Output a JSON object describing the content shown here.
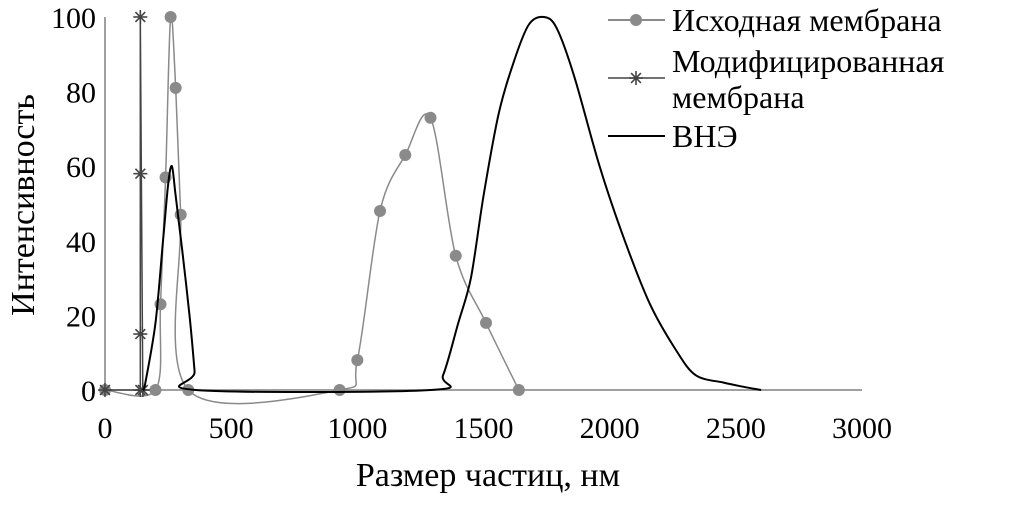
{
  "chart_data": {
    "type": "line",
    "xlabel": "Размер частиц, нм",
    "ylabel": "Интенсивность",
    "xlim": [
      0,
      3000
    ],
    "ylim": [
      0,
      100
    ],
    "xticks": [
      "0",
      "500",
      "1000",
      "1500",
      "2000",
      "2500",
      "3000"
    ],
    "yticks": [
      "0",
      "20",
      "40",
      "60",
      "80",
      "100"
    ],
    "grid": false,
    "legend_position": "top-right",
    "series": [
      {
        "name": "Исходная мембрана",
        "color": "#8a8a8a",
        "marker": "circle",
        "points": [
          [
            0,
            0
          ],
          [
            200,
            0
          ],
          [
            220,
            23
          ],
          [
            240,
            57
          ],
          [
            260,
            100
          ],
          [
            280,
            81
          ],
          [
            300,
            47
          ],
          [
            330,
            0
          ],
          [
            930,
            0
          ],
          [
            1000,
            8
          ],
          [
            1090,
            48
          ],
          [
            1190,
            63
          ],
          [
            1290,
            73
          ],
          [
            1390,
            36
          ],
          [
            1510,
            18
          ],
          [
            1640,
            0
          ]
        ]
      },
      {
        "name": "Модифицированная мембрана",
        "legend_lines": [
          "Модифицированная",
          "мембрана"
        ],
        "color": "#444444",
        "marker": "asterisk",
        "points": [
          [
            0,
            0
          ],
          [
            140,
            0
          ],
          [
            140,
            15
          ],
          [
            140,
            58
          ],
          [
            140,
            100
          ],
          [
            150,
            0
          ]
        ]
      },
      {
        "name": "ВНЭ",
        "color": "#000000",
        "marker": "none",
        "points": [
          [
            150,
            0
          ],
          [
            160,
            2
          ],
          [
            200,
            18
          ],
          [
            230,
            40
          ],
          [
            250,
            55
          ],
          [
            265,
            60
          ],
          [
            280,
            52
          ],
          [
            305,
            38
          ],
          [
            335,
            20
          ],
          [
            355,
            5
          ],
          [
            360,
            0
          ],
          [
            1290,
            0
          ],
          [
            1340,
            4
          ],
          [
            1400,
            18
          ],
          [
            1450,
            30
          ],
          [
            1500,
            52
          ],
          [
            1560,
            74
          ],
          [
            1620,
            88
          ],
          [
            1680,
            98
          ],
          [
            1740,
            100
          ],
          [
            1790,
            97
          ],
          [
            1860,
            84
          ],
          [
            1960,
            60
          ],
          [
            2060,
            40
          ],
          [
            2160,
            23
          ],
          [
            2260,
            11
          ],
          [
            2340,
            4
          ],
          [
            2450,
            2
          ],
          [
            2520,
            1
          ],
          [
            2600,
            0
          ]
        ]
      }
    ]
  }
}
